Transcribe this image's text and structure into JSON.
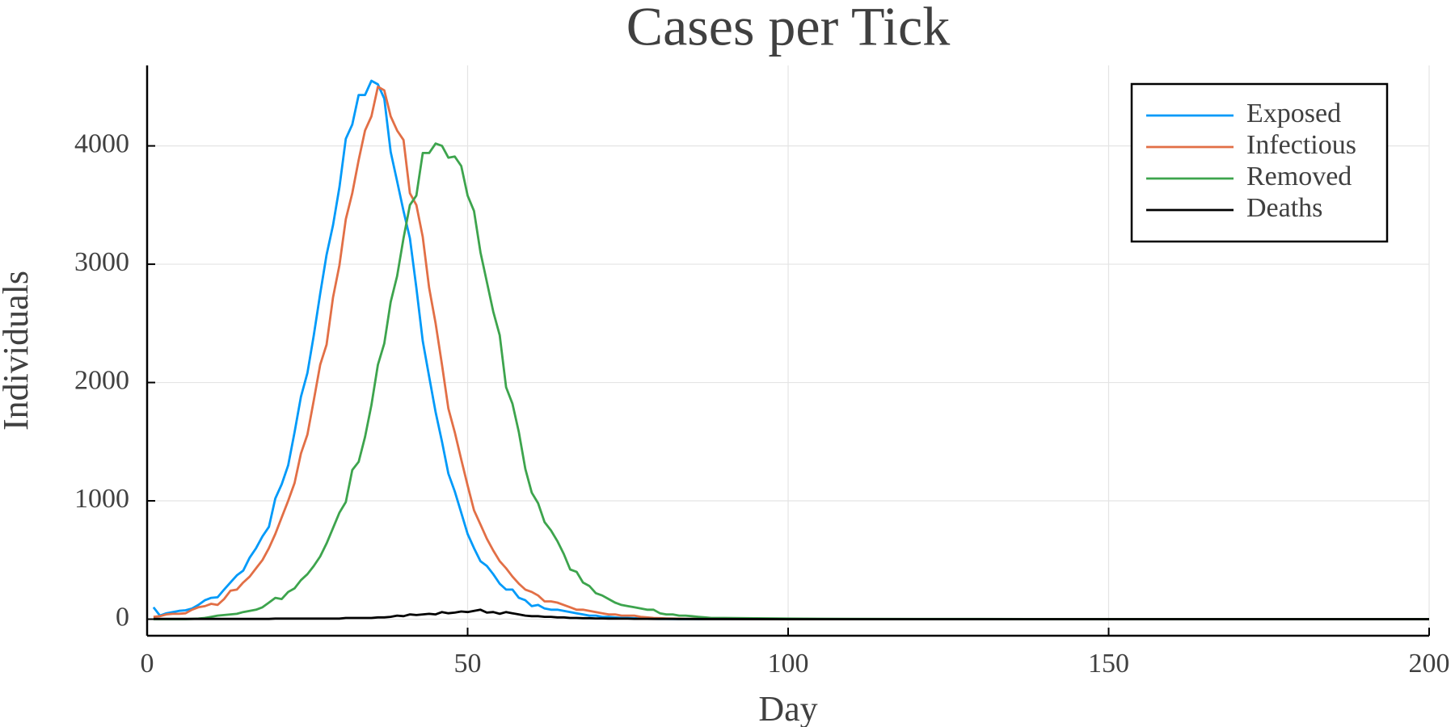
{
  "chart_data": {
    "type": "line",
    "title": "Cases per Tick",
    "x_label": "Day",
    "y_label": "Individuals",
    "x": [
      1,
      2,
      3,
      4,
      5,
      6,
      7,
      8,
      9,
      10,
      11,
      12,
      13,
      14,
      15,
      16,
      17,
      18,
      19,
      20,
      21,
      22,
      23,
      24,
      25,
      26,
      27,
      28,
      29,
      30,
      31,
      32,
      33,
      34,
      35,
      36,
      37,
      38,
      39,
      40,
      41,
      42,
      43,
      44,
      45,
      46,
      47,
      48,
      49,
      50,
      51,
      52,
      53,
      54,
      55,
      56,
      57,
      58,
      59,
      60,
      61,
      62,
      63,
      64,
      65,
      66,
      67,
      68,
      69,
      70,
      71,
      72,
      73,
      74,
      75,
      76,
      77,
      78,
      79,
      80,
      81,
      82,
      83,
      84,
      85,
      86,
      87,
      88,
      89,
      90,
      100,
      110,
      120,
      130,
      140,
      150,
      160,
      170,
      180,
      190,
      200
    ],
    "series": [
      {
        "name": "Exposed",
        "color": "#009af9",
        "values": [
          100,
          30,
          50,
          60,
          70,
          75,
          90,
          120,
          160,
          180,
          185,
          250,
          310,
          370,
          410,
          520,
          600,
          700,
          780,
          1020,
          1140,
          1300,
          1580,
          1880,
          2080,
          2400,
          2750,
          3080,
          3330,
          3650,
          4060,
          4180,
          4430,
          4430,
          4550,
          4520,
          4400,
          3950,
          3700,
          3450,
          3220,
          2800,
          2350,
          2050,
          1750,
          1500,
          1230,
          1080,
          900,
          720,
          600,
          490,
          450,
          380,
          300,
          250,
          250,
          180,
          160,
          110,
          120,
          90,
          80,
          80,
          70,
          60,
          50,
          40,
          30,
          30,
          20,
          20,
          15,
          10,
          10,
          8,
          5,
          5,
          3,
          2,
          2,
          1,
          1,
          1,
          1,
          0,
          0,
          0,
          0,
          0,
          0,
          0,
          0,
          0,
          0,
          0,
          0,
          0,
          0,
          0,
          0
        ]
      },
      {
        "name": "Infectious",
        "color": "#e26f46",
        "values": [
          20,
          25,
          40,
          45,
          45,
          50,
          80,
          100,
          110,
          130,
          120,
          170,
          240,
          250,
          310,
          360,
          430,
          500,
          600,
          720,
          860,
          1000,
          1150,
          1400,
          1560,
          1850,
          2150,
          2320,
          2720,
          2990,
          3380,
          3600,
          3880,
          4130,
          4250,
          4500,
          4470,
          4250,
          4130,
          4050,
          3600,
          3500,
          3230,
          2800,
          2500,
          2150,
          1780,
          1580,
          1350,
          1130,
          920,
          800,
          680,
          580,
          490,
          430,
          360,
          300,
          250,
          230,
          200,
          150,
          150,
          140,
          120,
          100,
          80,
          80,
          70,
          60,
          50,
          40,
          40,
          30,
          30,
          30,
          20,
          15,
          10,
          8,
          6,
          5,
          4,
          3,
          2,
          2,
          1,
          1,
          1,
          1,
          0,
          0,
          0,
          0,
          0,
          0,
          0,
          0,
          0,
          0,
          0
        ]
      },
      {
        "name": "Removed",
        "color": "#3da44d",
        "values": [
          0,
          0,
          0,
          0,
          0,
          0,
          2,
          5,
          10,
          20,
          30,
          35,
          40,
          45,
          60,
          70,
          80,
          100,
          140,
          180,
          170,
          230,
          260,
          330,
          380,
          450,
          530,
          640,
          770,
          900,
          990,
          1260,
          1330,
          1540,
          1810,
          2150,
          2330,
          2680,
          2900,
          3220,
          3500,
          3580,
          3940,
          3940,
          4020,
          4000,
          3900,
          3910,
          3830,
          3580,
          3450,
          3100,
          2850,
          2600,
          2400,
          1960,
          1820,
          1580,
          1270,
          1070,
          980,
          820,
          750,
          660,
          550,
          420,
          400,
          310,
          280,
          220,
          200,
          170,
          140,
          120,
          110,
          100,
          90,
          80,
          80,
          50,
          40,
          40,
          30,
          30,
          25,
          20,
          15,
          10,
          10,
          10,
          5,
          2,
          1,
          1,
          0,
          0,
          0,
          0,
          0,
          0,
          0
        ]
      },
      {
        "name": "Deaths",
        "color": "#000000",
        "values": [
          2,
          2,
          2,
          2,
          2,
          2,
          2,
          2,
          2,
          2,
          2,
          2,
          2,
          2,
          2,
          2,
          2,
          2,
          2,
          5,
          5,
          5,
          5,
          5,
          5,
          5,
          5,
          5,
          5,
          5,
          10,
          10,
          10,
          10,
          10,
          15,
          15,
          20,
          30,
          25,
          40,
          35,
          40,
          45,
          40,
          60,
          50,
          55,
          65,
          60,
          70,
          80,
          55,
          60,
          45,
          60,
          50,
          40,
          30,
          25,
          25,
          20,
          20,
          15,
          15,
          10,
          10,
          8,
          8,
          6,
          6,
          5,
          5,
          4,
          4,
          3,
          3,
          3,
          2,
          2,
          2,
          2,
          1,
          1,
          1,
          1,
          1,
          1,
          1,
          1,
          0,
          0,
          0,
          0,
          0,
          0,
          0,
          0,
          0,
          0,
          0
        ]
      }
    ],
    "xlim": [
      0,
      200
    ],
    "xticks": [
      0,
      50,
      100,
      150,
      200
    ],
    "ylim": [
      -140,
      4680
    ],
    "yticks": [
      0,
      1000,
      2000,
      3000,
      4000
    ],
    "grid": true,
    "legend": "top-right"
  }
}
